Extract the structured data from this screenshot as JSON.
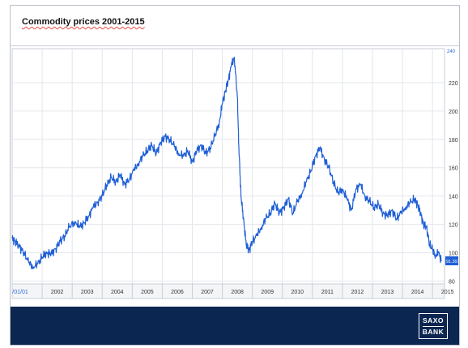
{
  "window": {
    "title": "Commodity prices 2001-2015"
  },
  "chart_data": {
    "type": "line",
    "title": "Commodity prices 2001-2015",
    "xlabel": "",
    "ylabel": "",
    "x_ticks": [
      "/01/01",
      "2002",
      "2003",
      "2004",
      "2005",
      "2006",
      "2007",
      "2008",
      "2009",
      "2010",
      "2011",
      "2012",
      "2013",
      "2014",
      "2015"
    ],
    "y_ticks": [
      80,
      100,
      120,
      140,
      160,
      180,
      200,
      220
    ],
    "ylim": [
      78,
      244
    ],
    "xlim": [
      2001.0,
      2015.4
    ],
    "grid": true,
    "line_color": "#1f5fd6",
    "last_value_label": "91.3975",
    "top_right_partial_label": "240",
    "series": [
      {
        "name": "",
        "x": [
          2001.0,
          2001.1,
          2001.25,
          2001.4,
          2001.55,
          2001.7,
          2001.85,
          2002.0,
          2002.15,
          2002.3,
          2002.45,
          2002.6,
          2002.75,
          2002.9,
          2003.1,
          2003.25,
          2003.4,
          2003.55,
          2003.7,
          2003.85,
          2004.0,
          2004.15,
          2004.3,
          2004.45,
          2004.6,
          2004.75,
          2004.9,
          2005.05,
          2005.2,
          2005.35,
          2005.5,
          2005.65,
          2005.8,
          2005.95,
          2006.1,
          2006.25,
          2006.4,
          2006.55,
          2006.7,
          2006.85,
          2007.0,
          2007.15,
          2007.3,
          2007.45,
          2007.6,
          2007.75,
          2007.9,
          2008.0,
          2008.1,
          2008.2,
          2008.3,
          2008.4,
          2008.5,
          2008.55,
          2008.62,
          2008.7,
          2008.8,
          2008.9,
          2009.0,
          2009.15,
          2009.3,
          2009.45,
          2009.6,
          2009.75,
          2009.9,
          2010.05,
          2010.2,
          2010.35,
          2010.5,
          2010.65,
          2010.8,
          2010.95,
          2011.1,
          2011.25,
          2011.4,
          2011.55,
          2011.7,
          2011.85,
          2012.0,
          2012.15,
          2012.3,
          2012.45,
          2012.6,
          2012.75,
          2012.9,
          2013.05,
          2013.2,
          2013.35,
          2013.5,
          2013.65,
          2013.8,
          2013.95,
          2014.1,
          2014.25,
          2014.4,
          2014.5,
          2014.6,
          2014.7,
          2014.8,
          2014.9,
          2015.0,
          2015.1,
          2015.2,
          2015.3
        ],
        "y": [
          110,
          108,
          104,
          100,
          93,
          90,
          92,
          97,
          100,
          99,
          103,
          108,
          112,
          118,
          122,
          118,
          121,
          126,
          132,
          136,
          140,
          148,
          153,
          150,
          155,
          148,
          152,
          158,
          163,
          168,
          172,
          176,
          170,
          178,
          182,
          180,
          175,
          170,
          168,
          172,
          164,
          172,
          176,
          170,
          174,
          182,
          192,
          205,
          214,
          222,
          232,
          238,
          210,
          175,
          140,
          125,
          105,
          102,
          108,
          112,
          118,
          124,
          128,
          135,
          128,
          132,
          138,
          128,
          136,
          142,
          150,
          158,
          168,
          174,
          166,
          160,
          150,
          142,
          145,
          138,
          130,
          145,
          148,
          140,
          136,
          132,
          134,
          128,
          126,
          130,
          124,
          128,
          132,
          135,
          138,
          134,
          128,
          120,
          118,
          106,
          102,
          98,
          100,
          94
        ]
      }
    ]
  },
  "footer": {
    "logo_line1": "SAXO",
    "logo_line2": "BANK",
    "background": "#0b2650"
  }
}
